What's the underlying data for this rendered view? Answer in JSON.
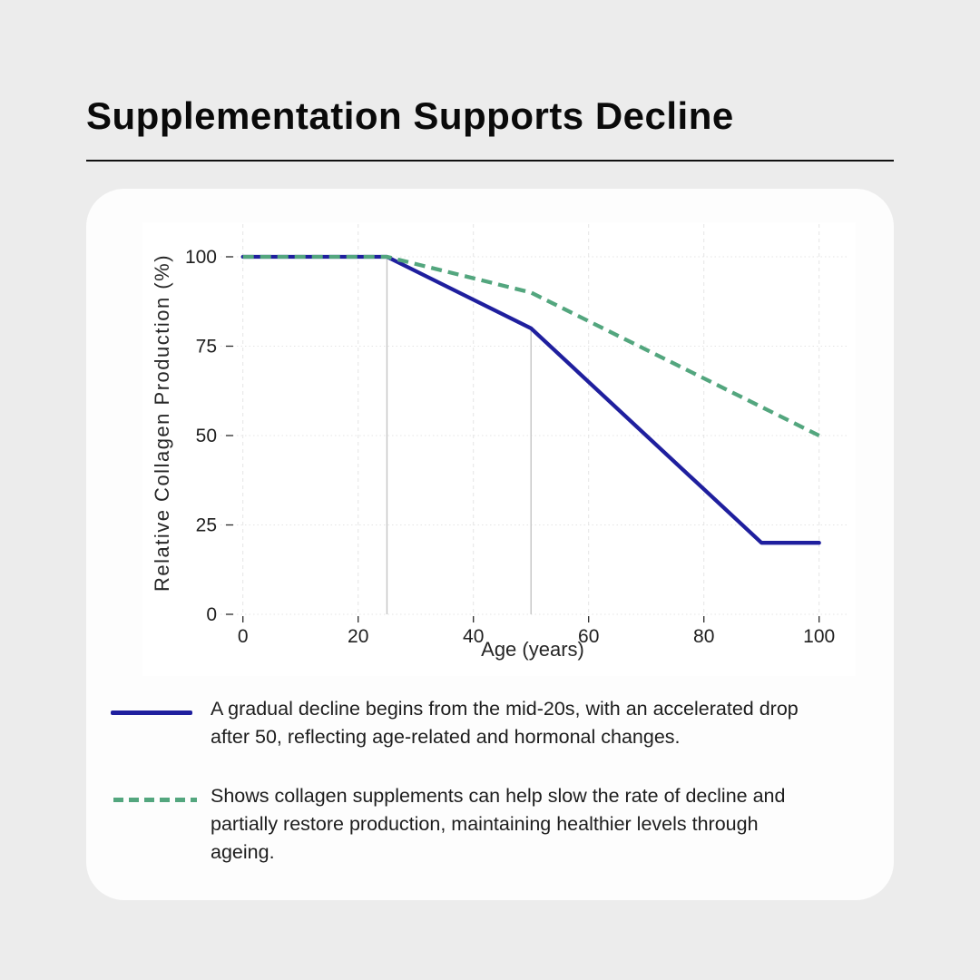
{
  "header": {
    "title": "Supplementation Supports Decline"
  },
  "colors": {
    "page_bg": "#ececec",
    "card_bg": "#fdfdfd",
    "figure_bg": "#ffffff",
    "navy_line": "#1f1f9e",
    "green_line": "#53a67e",
    "gridline": "#e4e4e4",
    "reference_line": "#c5c5c5",
    "tick_text": "#1f1f1f"
  },
  "chart_data": {
    "type": "line",
    "title": "",
    "xlabel": "Age (years)",
    "ylabel": "Relative Collagen Production (%)",
    "xlim": [
      0,
      100
    ],
    "ylim": [
      0,
      100
    ],
    "x_ticks": [
      0,
      20,
      40,
      60,
      80,
      100
    ],
    "y_ticks": [
      0,
      25,
      50,
      75,
      100
    ],
    "grid": true,
    "legend_position": "below-chart",
    "reference_lines": [
      {
        "x": 25,
        "y_from": 0,
        "y_to": 100
      },
      {
        "x": 50,
        "y_from": 0,
        "y_to": 80
      }
    ],
    "series": [
      {
        "id": "natural-decline",
        "style": "solid",
        "color": "#1f1f9e",
        "x": [
          0,
          25,
          50,
          90,
          100
        ],
        "y": [
          100,
          100,
          80,
          20,
          20
        ]
      },
      {
        "id": "with-supplementation",
        "style": "dashed",
        "color": "#53a67e",
        "x": [
          0,
          25,
          50,
          100
        ],
        "y": [
          100,
          100,
          90,
          50
        ]
      }
    ]
  },
  "legend": {
    "items": [
      {
        "swatch": "solid-navy-line",
        "description": "A gradual decline begins from the mid-20s, with an accelerated drop after 50, reflecting age-related and hormonal changes."
      },
      {
        "swatch": "dashed-green-line",
        "description": "Shows collagen supplements can help slow the rate of decline and partially restore production, maintaining healthier levels through ageing."
      }
    ]
  }
}
